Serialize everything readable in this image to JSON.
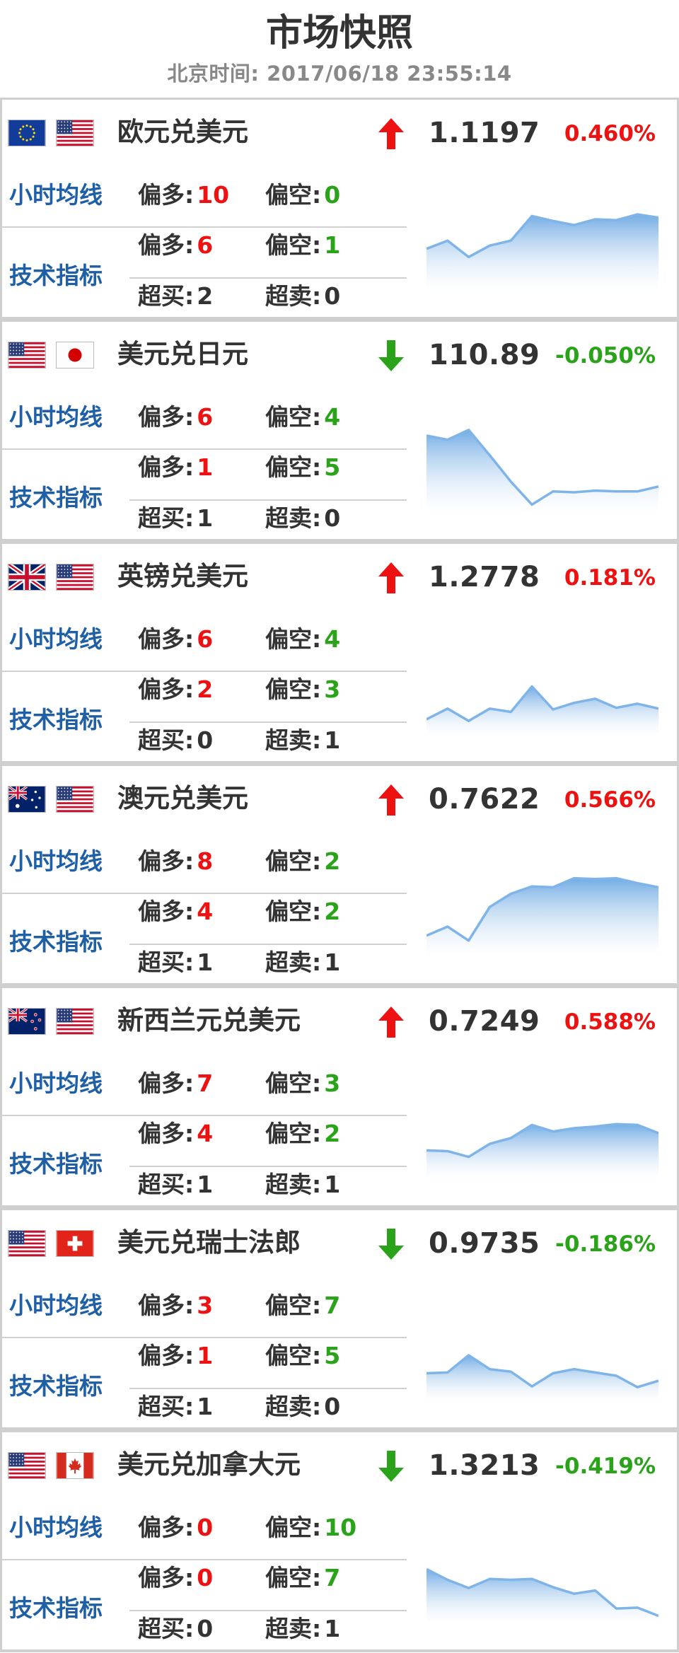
{
  "header": {
    "title": "市场快照",
    "time_label": "北京时间: 2017/06/18 23:55:14"
  },
  "colors": {
    "up": "#ee1111",
    "down": "#2aa31a",
    "label_blue": "#1f5fa6",
    "chart_line": "#7fb4e8"
  },
  "labels": {
    "ma": "小时均线",
    "tech": "技术指标",
    "long": "偏多:",
    "short": "偏空:",
    "overbought": "超买:",
    "oversold": "超卖:"
  },
  "pairs": [
    {
      "name": "欧元兑美元",
      "flags": [
        "eu-flag-icon",
        "us-flag-icon"
      ],
      "direction": "up",
      "price": "1.1197",
      "change": "0.460%",
      "ma": {
        "long": "10",
        "short": "0"
      },
      "tech": {
        "long": "6",
        "short": "1",
        "overbought": "2",
        "oversold": "0"
      },
      "trend": [
        0.45,
        0.55,
        0.35,
        0.49,
        0.55,
        0.85,
        0.79,
        0.74,
        0.81,
        0.8,
        0.87,
        0.83
      ]
    },
    {
      "name": "美元兑日元",
      "flags": [
        "us-flag-icon",
        "jp-flag-icon"
      ],
      "direction": "down",
      "price": "110.89",
      "change": "-0.050%",
      "ma": {
        "long": "6",
        "short": "4"
      },
      "tech": {
        "long": "1",
        "short": "5",
        "overbought": "1",
        "oversold": "0"
      },
      "trend": [
        0.88,
        0.83,
        0.95,
        0.64,
        0.32,
        0.04,
        0.2,
        0.19,
        0.21,
        0.2,
        0.2,
        0.26
      ]
    },
    {
      "name": "英镑兑美元",
      "flags": [
        "uk-flag-icon",
        "us-flag-icon"
      ],
      "direction": "up",
      "price": "1.2778",
      "change": "0.181%",
      "ma": {
        "long": "6",
        "short": "4"
      },
      "tech": {
        "long": "2",
        "short": "3",
        "overbought": "0",
        "oversold": "1"
      },
      "trend": [
        0.13,
        0.26,
        0.11,
        0.26,
        0.22,
        0.53,
        0.25,
        0.33,
        0.38,
        0.27,
        0.32,
        0.26
      ]
    },
    {
      "name": "澳元兑美元",
      "flags": [
        "au-flag-icon",
        "us-flag-icon"
      ],
      "direction": "up",
      "price": "0.7622",
      "change": "0.566%",
      "ma": {
        "long": "8",
        "short": "2"
      },
      "tech": {
        "long": "4",
        "short": "2",
        "overbought": "1",
        "oversold": "1"
      },
      "trend": [
        0.2,
        0.31,
        0.14,
        0.55,
        0.71,
        0.8,
        0.79,
        0.9,
        0.89,
        0.9,
        0.84,
        0.79
      ]
    },
    {
      "name": "新西兰元兑美元",
      "flags": [
        "nz-flag-icon",
        "us-flag-icon"
      ],
      "direction": "up",
      "price": "0.7249",
      "change": "0.588%",
      "ma": {
        "long": "7",
        "short": "3"
      },
      "tech": {
        "long": "4",
        "short": "2",
        "overbought": "1",
        "oversold": "1"
      },
      "trend": [
        0.29,
        0.28,
        0.21,
        0.37,
        0.44,
        0.6,
        0.52,
        0.56,
        0.58,
        0.61,
        0.6,
        0.5
      ]
    },
    {
      "name": "美元兑瑞士法郎",
      "flags": [
        "us-flag-icon",
        "ch-flag-icon"
      ],
      "direction": "down",
      "price": "0.9735",
      "change": "-0.186%",
      "ma": {
        "long": "3",
        "short": "7"
      },
      "tech": {
        "long": "1",
        "short": "5",
        "overbought": "1",
        "oversold": "0"
      },
      "trend": [
        0.28,
        0.29,
        0.5,
        0.33,
        0.3,
        0.12,
        0.28,
        0.33,
        0.29,
        0.25,
        0.11,
        0.19
      ]
    },
    {
      "name": "美元兑加拿大元",
      "flags": [
        "us-flag-icon",
        "ca-flag-icon"
      ],
      "direction": "down",
      "price": "1.3213",
      "change": "-0.419%",
      "ma": {
        "long": "0",
        "short": "10"
      },
      "tech": {
        "long": "0",
        "short": "7",
        "overbought": "0",
        "oversold": "1"
      },
      "trend": [
        0.6,
        0.47,
        0.37,
        0.48,
        0.47,
        0.48,
        0.38,
        0.3,
        0.34,
        0.12,
        0.13,
        0.03
      ]
    }
  ]
}
